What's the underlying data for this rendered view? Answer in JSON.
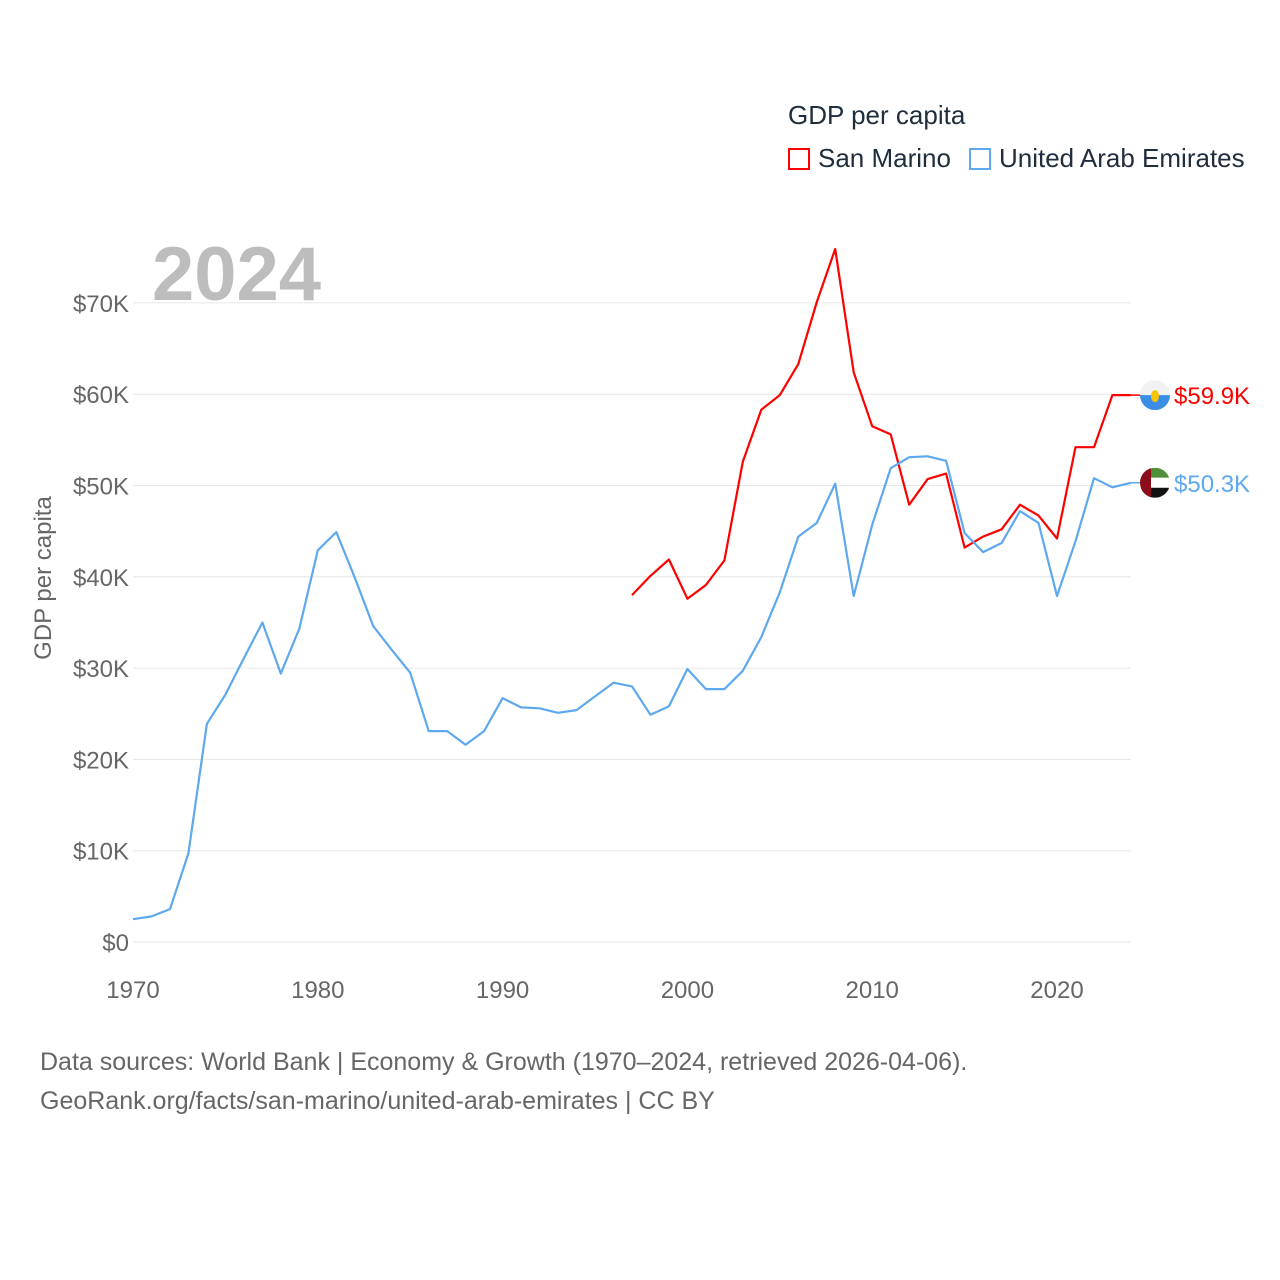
{
  "chart_data": {
    "type": "line",
    "title": "GDP per capita",
    "year_label": "2024",
    "xlabel": "",
    "ylabel": "GDP per capita",
    "xlim": [
      1970,
      2024
    ],
    "ylim": [
      0,
      70000
    ],
    "x_ticks": [
      "1970",
      "1980",
      "1990",
      "2000",
      "2010",
      "2020"
    ],
    "y_ticks": [
      "$0",
      "$10K",
      "$20K",
      "$30K",
      "$40K",
      "$50K",
      "$60K",
      "$70K"
    ],
    "grid": true,
    "legend_position": "top-right",
    "series": [
      {
        "name": "San Marino",
        "color": "#ff0000",
        "end_label": "$59.9K",
        "flag": "san-marino-flag",
        "x": [
          1997,
          1998,
          1999,
          2000,
          2001,
          2002,
          2003,
          2004,
          2005,
          2006,
          2007,
          2008,
          2009,
          2010,
          2011,
          2012,
          2013,
          2014,
          2015,
          2016,
          2017,
          2018,
          2019,
          2020,
          2021,
          2022,
          2023,
          2024
        ],
        "values": [
          38.0,
          40.1,
          41.9,
          37.6,
          39.1,
          41.8,
          52.6,
          58.3,
          59.9,
          63.3,
          70.1,
          75.9,
          62.4,
          56.5,
          55.6,
          47.9,
          50.7,
          51.3,
          43.2,
          44.4,
          45.2,
          47.9,
          46.7,
          44.2,
          54.2,
          54.2,
          59.9,
          59.9
        ]
      },
      {
        "name": "United Arab Emirates",
        "color": "#5ea8ee",
        "end_label": "$50.3K",
        "flag": "uae-flag",
        "x": [
          1970,
          1971,
          1972,
          1973,
          1974,
          1975,
          1976,
          1977,
          1978,
          1979,
          1980,
          1981,
          1982,
          1983,
          1984,
          1985,
          1986,
          1987,
          1988,
          1989,
          1990,
          1991,
          1992,
          1993,
          1994,
          1995,
          1996,
          1997,
          1998,
          1999,
          2000,
          2001,
          2002,
          2003,
          2004,
          2005,
          2006,
          2007,
          2008,
          2009,
          2010,
          2011,
          2012,
          2013,
          2014,
          2015,
          2016,
          2017,
          2018,
          2019,
          2020,
          2021,
          2022,
          2023,
          2024
        ],
        "values": [
          2.5,
          2.8,
          3.6,
          9.7,
          23.9,
          27.1,
          31.1,
          35.0,
          29.4,
          34.3,
          42.9,
          44.9,
          39.9,
          34.6,
          32.0,
          29.5,
          23.1,
          23.1,
          21.6,
          23.1,
          26.7,
          25.7,
          25.6,
          25.1,
          25.4,
          26.9,
          28.4,
          28.0,
          24.9,
          25.8,
          29.9,
          27.7,
          27.7,
          29.7,
          33.4,
          38.3,
          44.4,
          45.9,
          50.2,
          37.9,
          45.7,
          51.9,
          53.1,
          53.2,
          52.7,
          44.8,
          42.7,
          43.7,
          47.2,
          45.9,
          37.9,
          43.9,
          50.8,
          49.8,
          50.3
        ]
      }
    ],
    "value_unit": "thousand USD"
  },
  "footer": {
    "line1": "Data sources: World Bank | Economy & Growth (1970–2024, retrieved 2026-04-06).",
    "line2": "GeoRank.org/facts/san-marino/united-arab-emirates | CC BY"
  }
}
